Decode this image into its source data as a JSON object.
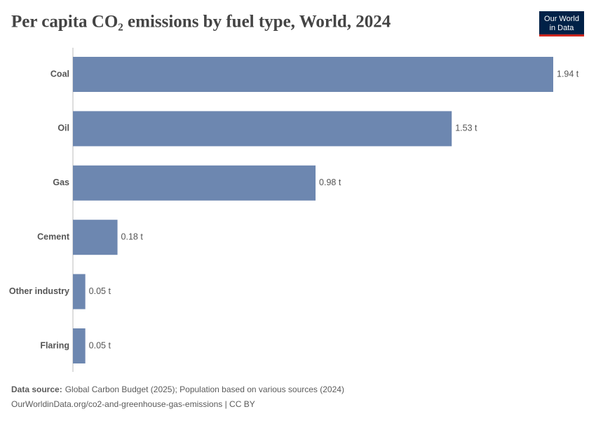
{
  "chart_data": {
    "type": "bar",
    "orientation": "horizontal",
    "title": "Per capita CO₂ emissions by fuel type, World, 2024",
    "categories": [
      "Coal",
      "Oil",
      "Gas",
      "Cement",
      "Other industry",
      "Flaring"
    ],
    "values": [
      1.94,
      1.53,
      0.98,
      0.18,
      0.05,
      0.05
    ],
    "value_labels": [
      "1.94 t",
      "1.53 t",
      "0.98 t",
      "0.18 t",
      "0.05 t",
      "0.05 t"
    ],
    "color": "#6d87b0"
  },
  "footer": {
    "source_label": "Data source:",
    "source_text": "Global Carbon Budget (2025); Population based on various sources (2024)",
    "url": "OurWorldinData.org/co2-and-greenhouse-gas-emissions | CC BY"
  },
  "logo": {
    "line1": "Our World",
    "line2": "in Data"
  }
}
